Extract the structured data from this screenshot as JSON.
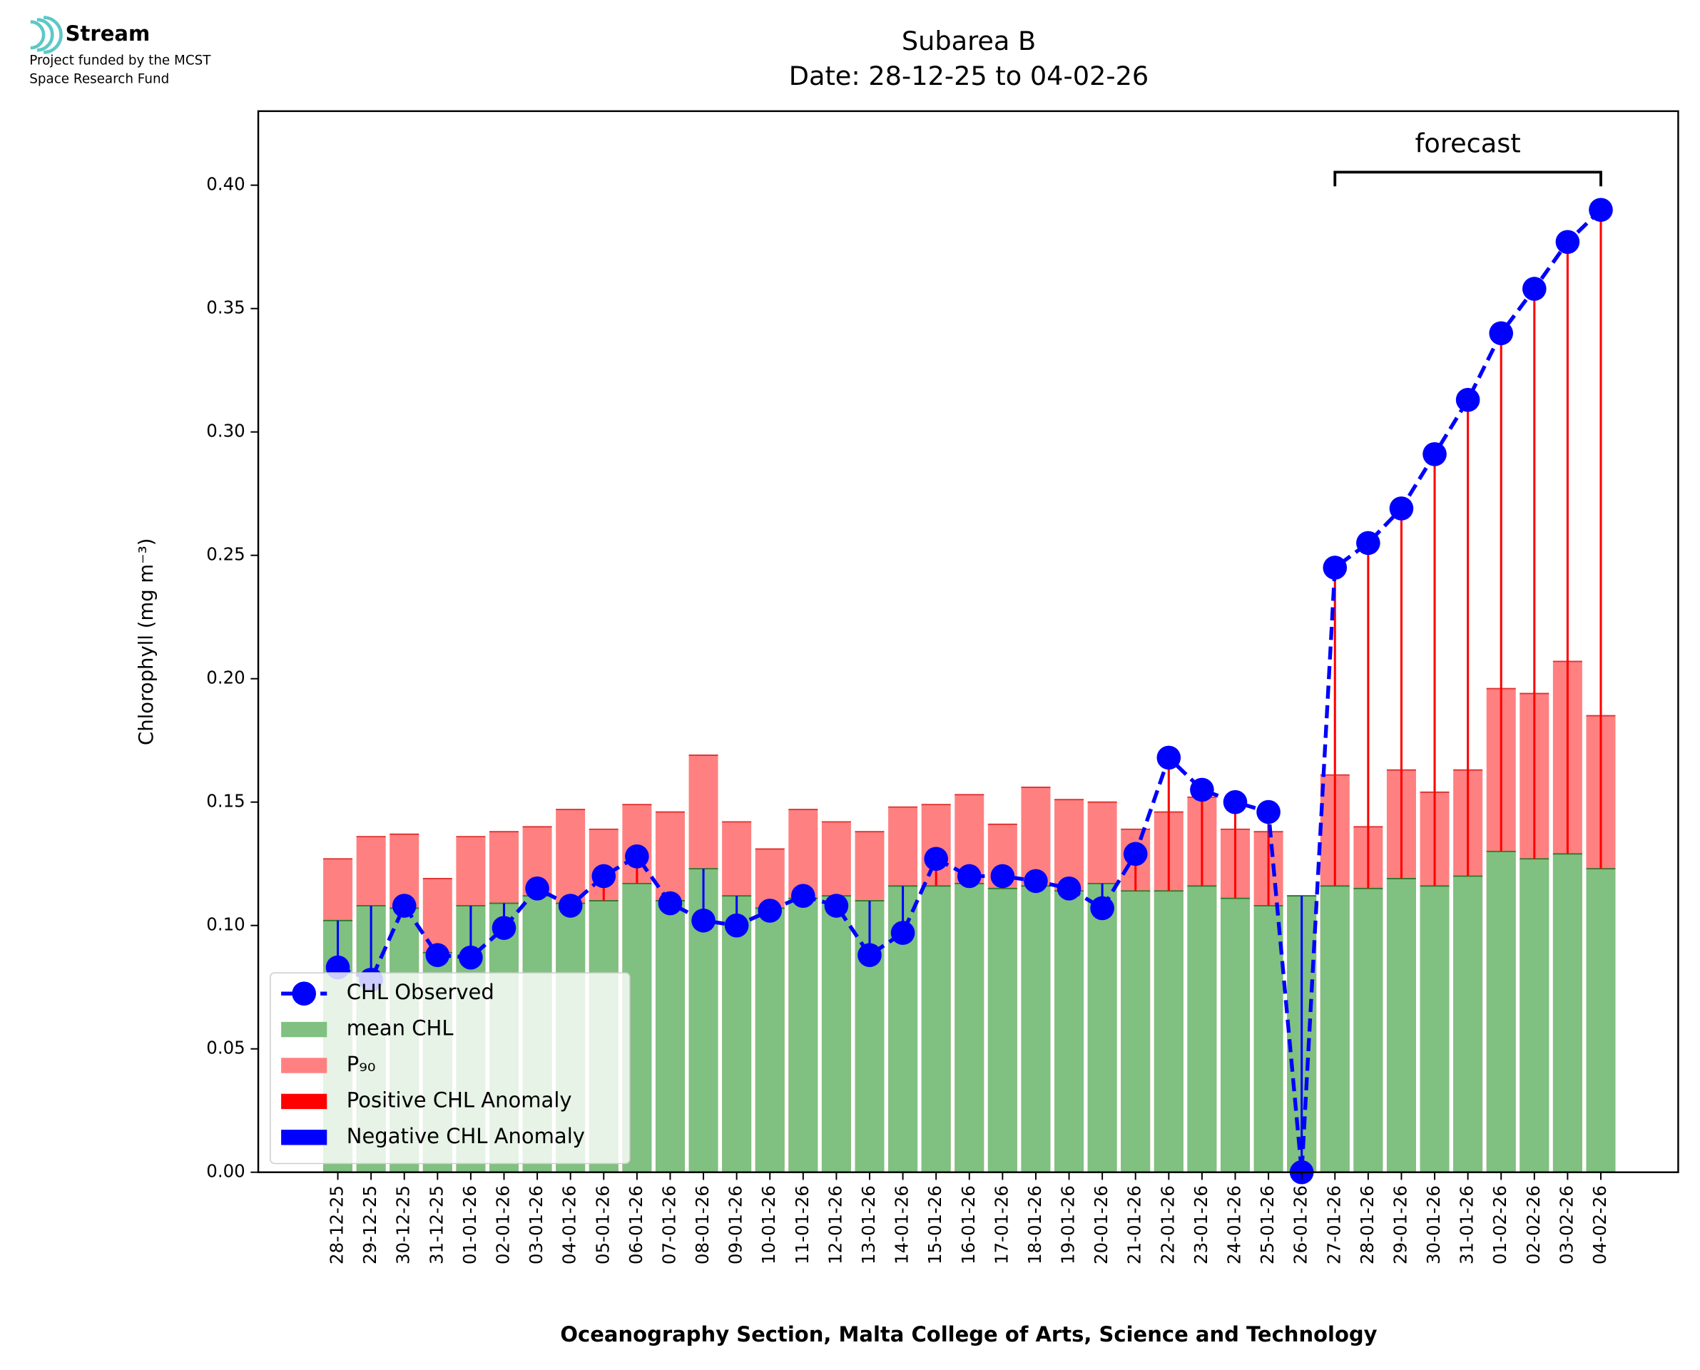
{
  "logo": {
    "name": "Stream",
    "lines": [
      "Project funded by the MCST",
      "Space Research Fund"
    ]
  },
  "chart_data": {
    "type": "bar",
    "title": "Subarea B",
    "subtitle": "Date: 28-12-25 to 04-02-26",
    "x_label": "Oceanography Section, Malta College of Arts, Science and Technology",
    "y_label": "Chlorophyll (mg m⁻³)",
    "categories": [
      "28-12-25",
      "29-12-25",
      "30-12-25",
      "31-12-25",
      "01-01-26",
      "02-01-26",
      "03-01-26",
      "04-01-26",
      "05-01-26",
      "06-01-26",
      "07-01-26",
      "08-01-26",
      "09-01-26",
      "10-01-26",
      "11-01-26",
      "12-01-26",
      "13-01-26",
      "14-01-26",
      "15-01-26",
      "16-01-26",
      "17-01-26",
      "18-01-26",
      "19-01-26",
      "20-01-26",
      "21-01-26",
      "22-01-26",
      "23-01-26",
      "24-01-26",
      "25-01-26",
      "26-01-26",
      "27-01-26",
      "28-01-26",
      "29-01-26",
      "30-01-26",
      "31-01-26",
      "01-02-26",
      "02-02-26",
      "03-02-26",
      "04-02-26"
    ],
    "series": [
      {
        "name": "CHL Observed",
        "kind": "line",
        "color": "#0000ff",
        "values": [
          0.083,
          0.078,
          0.108,
          0.088,
          0.087,
          0.099,
          0.115,
          0.108,
          0.12,
          0.128,
          0.109,
          0.102,
          0.1,
          0.106,
          0.112,
          0.108,
          0.088,
          0.097,
          0.127,
          0.12,
          0.12,
          0.118,
          0.115,
          0.107,
          0.129,
          0.168,
          0.155,
          0.15,
          0.146,
          0,
          0.245,
          0.255,
          0.269,
          0.291,
          0.313,
          0.34,
          0.358,
          0.377,
          0.39
        ]
      },
      {
        "name": "mean CHL",
        "kind": "bar",
        "color": "#80c080",
        "values": [
          0.102,
          0.108,
          0.107,
          0.089,
          0.108,
          0.109,
          0.112,
          0.109,
          0.11,
          0.117,
          0.11,
          0.123,
          0.112,
          0.107,
          0.111,
          0.112,
          0.11,
          0.116,
          0.116,
          0.117,
          0.115,
          0.116,
          0.114,
          0.117,
          0.114,
          0.114,
          0.116,
          0.111,
          0.108,
          0.112,
          0.116,
          0.115,
          0.119,
          0.116,
          0.12,
          0.13,
          0.127,
          0.129,
          0.123
        ]
      },
      {
        "name": "P₉₀",
        "kind": "bar",
        "color": "#ff8080",
        "values": [
          0.127,
          0.136,
          0.137,
          0.119,
          0.136,
          0.138,
          0.14,
          0.147,
          0.139,
          0.149,
          0.146,
          0.169,
          0.142,
          0.131,
          0.147,
          0.142,
          0.138,
          0.148,
          0.149,
          0.153,
          0.141,
          0.156,
          0.151,
          0.15,
          0.139,
          0.146,
          0.152,
          0.139,
          0.138,
          0.112,
          0.161,
          0.14,
          0.163,
          0.154,
          0.163,
          0.196,
          0.194,
          0.207,
          0.185
        ]
      }
    ],
    "anomalies": [
      {
        "name": "Positive CHL Anomaly",
        "color": "#ff0000"
      },
      {
        "name": "Negative CHL Anomaly",
        "color": "#0000ff"
      }
    ],
    "annotation": {
      "label": "forecast",
      "from": "27-01-26",
      "to": "04-02-26"
    },
    "ylim": [
      0,
      0.43
    ],
    "yticks": [
      {
        "value": 0,
        "label": "0.00"
      },
      {
        "value": 0.05,
        "label": "0.05"
      },
      {
        "value": 0.1,
        "label": "0.10"
      },
      {
        "value": 0.15,
        "label": "0.15"
      },
      {
        "value": 0.2,
        "label": "0.20"
      },
      {
        "value": 0.25,
        "label": "0.25"
      },
      {
        "value": 0.3,
        "label": "0.30"
      },
      {
        "value": 0.35,
        "label": "0.35"
      },
      {
        "value": 0.4,
        "label": "0.40"
      }
    ],
    "legend": "lower left"
  }
}
